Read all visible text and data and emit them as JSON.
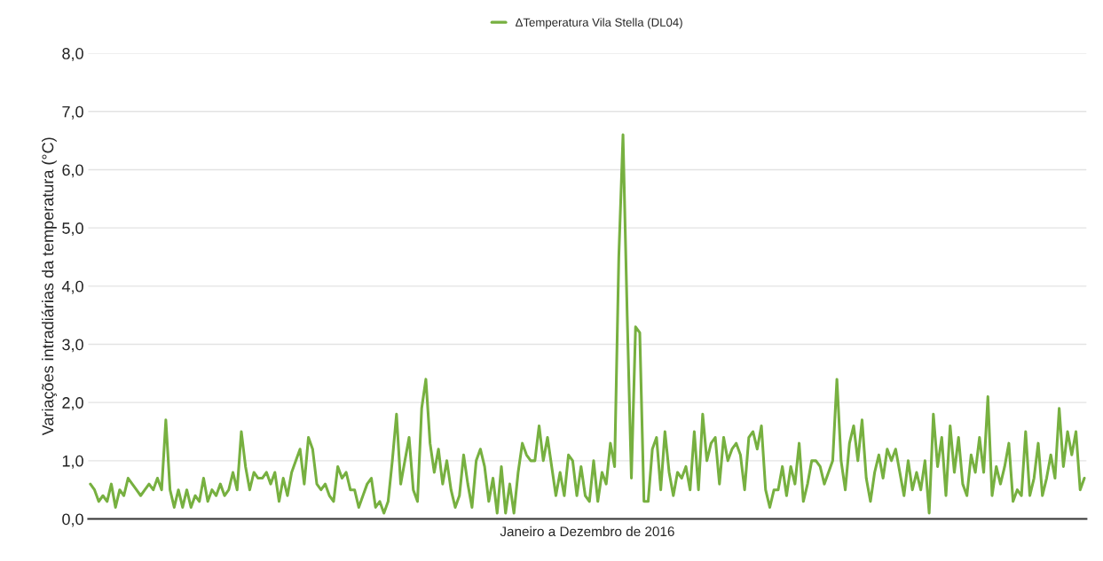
{
  "chart_data": {
    "type": "line",
    "xlabel": "Janeiro a Dezembro de 2016",
    "ylabel": "Variações intradiárias da temperatura (°C)",
    "ylim": [
      0,
      8
    ],
    "yticks": [
      {
        "value": 0,
        "label": "0,0"
      },
      {
        "value": 1,
        "label": "1,0"
      },
      {
        "value": 2,
        "label": "2,0"
      },
      {
        "value": 3,
        "label": "3,0"
      },
      {
        "value": 4,
        "label": "4,0"
      },
      {
        "value": 5,
        "label": "5,0"
      },
      {
        "value": 6,
        "label": "6,0"
      },
      {
        "value": 7,
        "label": "7,0"
      },
      {
        "value": 8,
        "label": "8,0"
      }
    ],
    "grid": "y",
    "legend": "top",
    "marker": "none",
    "line_style": "solid",
    "tick_labels": "y",
    "categories": [
      null,
      null,
      null,
      null,
      null,
      null,
      null,
      null,
      null,
      null,
      null,
      null,
      null,
      null,
      null,
      null,
      null,
      null,
      null,
      null,
      null,
      null,
      null,
      null,
      null,
      null,
      null,
      null,
      null,
      null,
      null,
      null,
      null,
      null,
      null,
      null,
      null,
      null,
      null,
      null,
      null,
      null,
      null,
      null,
      null,
      null,
      null,
      null,
      null,
      null,
      null,
      null,
      null,
      null,
      null,
      null,
      null,
      null,
      null,
      null,
      null,
      null,
      null,
      null,
      null,
      null,
      null,
      null,
      null,
      null,
      null,
      null,
      null,
      null,
      null,
      null,
      null,
      null,
      null,
      null,
      null,
      null,
      null,
      null,
      null,
      null,
      null,
      null,
      null,
      null,
      null,
      null,
      null,
      null,
      null,
      null,
      null,
      null,
      null,
      null,
      null,
      null,
      null,
      null,
      null,
      null,
      null,
      null,
      null,
      null,
      null,
      null,
      null,
      null,
      null,
      null,
      null,
      null,
      null,
      null,
      null,
      null,
      null,
      null,
      null,
      null,
      null,
      null,
      null,
      null,
      null,
      null,
      null,
      null,
      null,
      null,
      null,
      null,
      null,
      null,
      null,
      null,
      null,
      null,
      null,
      null,
      null,
      null,
      null,
      null,
      null,
      null,
      null,
      null,
      null,
      null,
      null,
      null,
      null,
      null,
      null,
      null,
      null,
      null,
      null,
      null,
      null,
      null,
      null,
      null,
      null,
      null,
      null,
      null,
      null,
      null,
      null,
      null,
      null,
      null,
      null,
      null,
      null,
      null,
      null,
      null,
      null,
      null,
      null,
      null,
      null,
      null,
      null,
      null,
      null,
      null,
      null,
      null,
      null,
      null,
      null,
      null,
      null,
      null,
      null,
      null,
      null,
      null,
      null,
      null,
      null,
      null,
      null,
      null,
      null,
      null,
      null,
      null,
      null,
      null,
      null,
      null,
      null,
      null,
      null,
      null,
      null,
      null,
      null,
      null,
      null,
      null,
      null,
      null,
      null,
      null,
      null,
      null
    ],
    "series": [
      {
        "name": "ΔTemperatura Vila Stella (DL04)",
        "color": "#77b040",
        "values": [
          0.6,
          0.5,
          0.3,
          0.4,
          0.3,
          0.6,
          0.2,
          0.5,
          0.4,
          0.7,
          0.6,
          0.5,
          0.4,
          0.5,
          0.6,
          0.5,
          0.7,
          0.5,
          1.7,
          0.5,
          0.2,
          0.5,
          0.2,
          0.5,
          0.2,
          0.4,
          0.3,
          0.7,
          0.3,
          0.5,
          0.4,
          0.6,
          0.4,
          0.5,
          0.8,
          0.5,
          1.5,
          0.9,
          0.5,
          0.8,
          0.7,
          0.7,
          0.8,
          0.6,
          0.8,
          0.3,
          0.7,
          0.4,
          0.8,
          1.0,
          1.2,
          0.6,
          1.4,
          1.2,
          0.6,
          0.5,
          0.6,
          0.4,
          0.3,
          0.9,
          0.7,
          0.8,
          0.5,
          0.5,
          0.2,
          0.4,
          0.6,
          0.7,
          0.2,
          0.3,
          0.1,
          0.3,
          1.0,
          1.8,
          0.6,
          1.0,
          1.4,
          0.5,
          0.3,
          1.9,
          2.4,
          1.3,
          0.8,
          1.2,
          0.6,
          1.0,
          0.5,
          0.2,
          0.4,
          1.1,
          0.6,
          0.2,
          1.0,
          1.2,
          0.9,
          0.3,
          0.7,
          0.1,
          0.9,
          0.1,
          0.6,
          0.1,
          0.8,
          1.3,
          1.1,
          1.0,
          1.0,
          1.6,
          1.0,
          1.4,
          0.9,
          0.4,
          0.8,
          0.4,
          1.1,
          1.0,
          0.4,
          0.9,
          0.4,
          0.3,
          1.0,
          0.3,
          0.8,
          0.6,
          1.3,
          0.9,
          4.5,
          6.6,
          3.5,
          0.7,
          3.3,
          3.2,
          0.3,
          0.3,
          1.2,
          1.4,
          0.5,
          1.5,
          0.8,
          0.4,
          0.8,
          0.7,
          0.9,
          0.5,
          1.5,
          0.5,
          1.8,
          1.0,
          1.3,
          1.4,
          0.6,
          1.4,
          1.0,
          1.2,
          1.3,
          1.1,
          0.5,
          1.4,
          1.5,
          1.2,
          1.6,
          0.5,
          0.2,
          0.5,
          0.5,
          0.9,
          0.4,
          0.9,
          0.6,
          1.3,
          0.3,
          0.6,
          1.0,
          1.0,
          0.9,
          0.6,
          0.8,
          1.0,
          2.4,
          1.0,
          0.5,
          1.3,
          1.6,
          1.0,
          1.7,
          0.7,
          0.3,
          0.8,
          1.1,
          0.7,
          1.2,
          1.0,
          1.2,
          0.8,
          0.4,
          1.0,
          0.5,
          0.8,
          0.5,
          1.0,
          0.1,
          1.8,
          0.9,
          1.4,
          0.4,
          1.6,
          0.8,
          1.4,
          0.6,
          0.4,
          1.1,
          0.8,
          1.4,
          0.8,
          2.1,
          0.4,
          0.9,
          0.6,
          0.9,
          1.3,
          0.3,
          0.5,
          0.4,
          1.5,
          0.4,
          0.7,
          1.3,
          0.4,
          0.7,
          1.1,
          0.7,
          1.9,
          0.9,
          1.5,
          1.1,
          1.5,
          0.5,
          0.7
        ]
      }
    ]
  }
}
